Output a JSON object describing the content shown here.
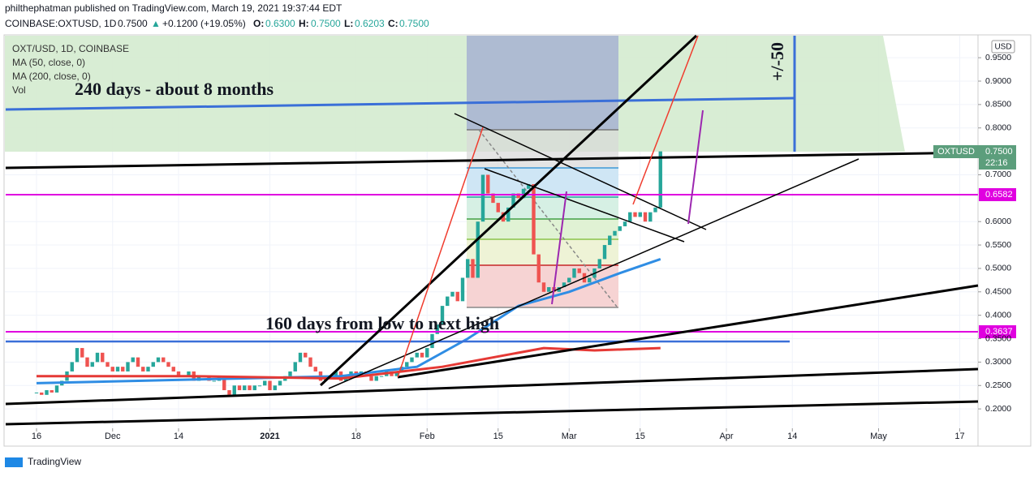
{
  "header": {
    "publisher": "philthephatman published on TradingView.com, March 19, 2021 19:37:44 EDT",
    "symbol": "COINBASE:OXTUSD, 1D",
    "last": "0.7500",
    "change": "+0.1200 (+19.05%)",
    "o_label": "O:",
    "open": "0.6300",
    "h_label": "H:",
    "high": "0.7500",
    "l_label": "L:",
    "low": "0.6203",
    "c_label": "C:",
    "close": "0.7500"
  },
  "legend": [
    "OXT/USD, 1D, COINBASE",
    "MA (50, close, 0)",
    "MA (200, close, 0)",
    "Vol"
  ],
  "price_labels": {
    "currency": "USD",
    "symbol": "OXTUSD",
    "price": "0.7500",
    "countdown": "22:16",
    "level_1": "0.6582",
    "level_2": "0.3637"
  },
  "annotations": [
    "240 days - about 8 months",
    "160 days from low to next high",
    "+/-50"
  ],
  "footer": "TradingView",
  "chart_data": {
    "type": "candlestick",
    "xlim": [
      -7.2,
      185.6
    ],
    "ylim": [
      0.124,
      0.997
    ],
    "xticks": [
      {
        "value": 0,
        "label": "16"
      },
      {
        "value": 15,
        "label": "Dec"
      },
      {
        "value": 28,
        "label": "14"
      },
      {
        "value": 46,
        "label": "2021"
      },
      {
        "value": 63,
        "label": "18"
      },
      {
        "value": 77,
        "label": "Feb"
      },
      {
        "value": 91,
        "label": "15"
      },
      {
        "value": 105,
        "label": "Mar"
      },
      {
        "value": 119,
        "label": "15"
      },
      {
        "value": 136,
        "label": "Apr"
      },
      {
        "value": 149,
        "label": "14"
      },
      {
        "value": 166,
        "label": "May"
      },
      {
        "value": 182,
        "label": "17"
      }
    ],
    "yticks": [
      {
        "value": 0.2,
        "label": "0.2000"
      },
      {
        "value": 0.25,
        "label": "0.2500"
      },
      {
        "value": 0.3,
        "label": "0.3000"
      },
      {
        "value": 0.35,
        "label": "0.3500"
      },
      {
        "value": 0.4,
        "label": "0.4000"
      },
      {
        "value": 0.45,
        "label": "0.4500"
      },
      {
        "value": 0.5,
        "label": "0.5000"
      },
      {
        "value": 0.55,
        "label": "0.5500"
      },
      {
        "value": 0.6,
        "label": "0.6000"
      },
      {
        "value": 0.7,
        "label": "0.7000"
      },
      {
        "value": 0.8,
        "label": "0.8000"
      },
      {
        "value": 0.85,
        "label": "0.8500"
      },
      {
        "value": 0.9,
        "label": "0.9000"
      },
      {
        "value": 0.95,
        "label": "0.9500"
      }
    ],
    "close": [
      0.235,
      0.23,
      0.24,
      0.235,
      0.25,
      0.26,
      0.28,
      0.3,
      0.33,
      0.31,
      0.29,
      0.3,
      0.32,
      0.3,
      0.29,
      0.28,
      0.29,
      0.28,
      0.3,
      0.31,
      0.29,
      0.28,
      0.29,
      0.3,
      0.31,
      0.3,
      0.29,
      0.28,
      0.27,
      0.27,
      0.28,
      0.26,
      0.27,
      0.27,
      0.26,
      0.26,
      0.27,
      0.24,
      0.23,
      0.25,
      0.24,
      0.25,
      0.24,
      0.25,
      0.25,
      0.26,
      0.24,
      0.25,
      0.26,
      0.27,
      0.28,
      0.3,
      0.32,
      0.31,
      0.29,
      0.28,
      0.26,
      0.27,
      0.27,
      0.28,
      0.26,
      0.27,
      0.28,
      0.27,
      0.28,
      0.27,
      0.26,
      0.27,
      0.27,
      0.28,
      0.27,
      0.28,
      0.29,
      0.3,
      0.31,
      0.32,
      0.31,
      0.33,
      0.36,
      0.38,
      0.42,
      0.44,
      0.45,
      0.43,
      0.48,
      0.52,
      0.48,
      0.6,
      0.7,
      0.66,
      0.64,
      0.62,
      0.6,
      0.63,
      0.66,
      0.65,
      0.67,
      0.68,
      0.53,
      0.47,
      0.45,
      0.46,
      0.45,
      0.46,
      0.47,
      0.48,
      0.5,
      0.49,
      0.47,
      0.48,
      0.5,
      0.52,
      0.55,
      0.57,
      0.58,
      0.59,
      0.6,
      0.62,
      0.61,
      0.62,
      0.6,
      0.62,
      0.63,
      0.75
    ],
    "series": [
      {
        "name": "MA (50, close, 0)",
        "color": "#2f8de4",
        "x": [
          0,
          20,
          40,
          60,
          75,
          85,
          95,
          105,
          115,
          123
        ],
        "values": [
          0.255,
          0.26,
          0.265,
          0.27,
          0.29,
          0.35,
          0.42,
          0.45,
          0.49,
          0.52
        ]
      },
      {
        "name": "MA (200, close, 0)",
        "color": "#e53935",
        "x": [
          0,
          30,
          60,
          80,
          100,
          110,
          123
        ],
        "values": [
          0.27,
          0.27,
          0.265,
          0.29,
          0.33,
          0.325,
          0.33
        ]
      }
    ]
  }
}
